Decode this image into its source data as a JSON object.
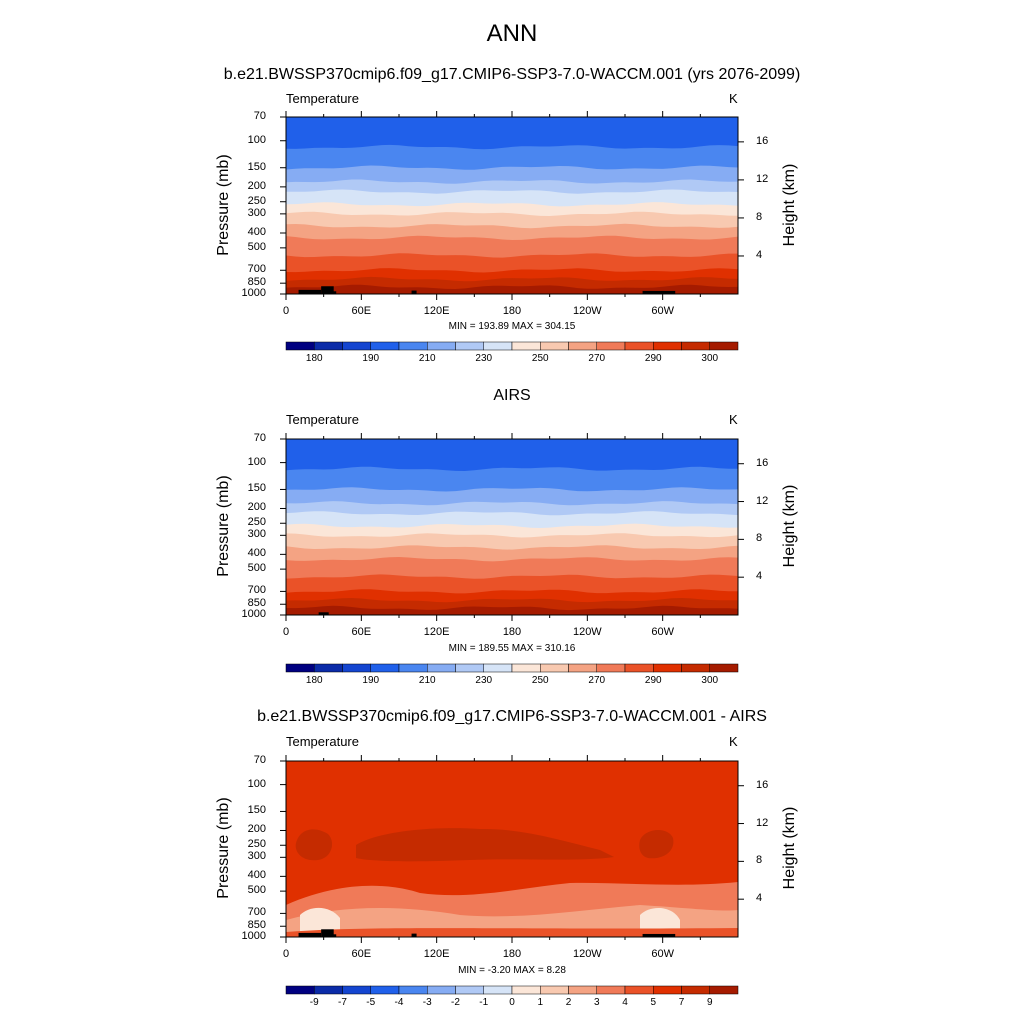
{
  "title": "ANN",
  "colors": {
    "temperature_scale": [
      "#000080",
      "#0b2ba8",
      "#1445d0",
      "#2060ea",
      "#4a86f0",
      "#86acf3",
      "#b0c9f5",
      "#d6e4f7",
      "#fbe6d8",
      "#f8c9b0",
      "#f4a383",
      "#f07a58",
      "#ea5228",
      "#e03000",
      "#c52b00",
      "#a51b00",
      "#7e0000"
    ],
    "mask": "#000000"
  },
  "chart_data": [
    {
      "type": "heatmap",
      "id": "model",
      "title": "b.e21.BWSSP370cmip6.f09_g17.CMIP6-SSP3-7.0-WACCM.001 (yrs 2076-2099)",
      "left_label": "Temperature",
      "right_label": "K",
      "ylabel": "Pressure (mb)",
      "ylabel_right": "Height (km)",
      "x_ticks": [
        "0",
        "60E",
        "120E",
        "180",
        "120W",
        "60W"
      ],
      "y_ticks": [
        "70",
        "100",
        "150",
        "200",
        "250",
        "300",
        "400",
        "500",
        "700",
        "850",
        "1000"
      ],
      "height_ticks": [
        "4",
        "8",
        "12",
        "16"
      ],
      "stats": "MIN = 193.89  MAX = 304.15",
      "colorbar_labels": [
        "180",
        "190",
        "210",
        "230",
        "250",
        "270",
        "290",
        "300"
      ],
      "ylim": [
        1000,
        70
      ],
      "xlim": [
        0,
        360
      ]
    },
    {
      "type": "heatmap",
      "id": "obs",
      "title": "AIRS",
      "left_label": "Temperature",
      "right_label": "K",
      "ylabel": "Pressure (mb)",
      "ylabel_right": "Height (km)",
      "x_ticks": [
        "0",
        "60E",
        "120E",
        "180",
        "120W",
        "60W"
      ],
      "y_ticks": [
        "70",
        "100",
        "150",
        "200",
        "250",
        "300",
        "400",
        "500",
        "700",
        "850",
        "1000"
      ],
      "height_ticks": [
        "4",
        "8",
        "12",
        "16"
      ],
      "stats": "MIN = 189.55  MAX = 310.16",
      "colorbar_labels": [
        "180",
        "190",
        "210",
        "230",
        "250",
        "270",
        "290",
        "300"
      ],
      "ylim": [
        1000,
        70
      ],
      "xlim": [
        0,
        360
      ]
    },
    {
      "type": "heatmap",
      "id": "diff",
      "title": "b.e21.BWSSP370cmip6.f09_g17.CMIP6-SSP3-7.0-WACCM.001 - AIRS",
      "left_label": "Temperature",
      "right_label": "K",
      "ylabel": "Pressure (mb)",
      "ylabel_right": "Height (km)",
      "x_ticks": [
        "0",
        "60E",
        "120E",
        "180",
        "120W",
        "60W"
      ],
      "y_ticks": [
        "70",
        "100",
        "150",
        "200",
        "250",
        "300",
        "400",
        "500",
        "700",
        "850",
        "1000"
      ],
      "height_ticks": [
        "4",
        "8",
        "12",
        "16"
      ],
      "stats": "MIN =  -3.20  MAX =   8.28",
      "colorbar_labels": [
        "-9",
        "-7",
        "-5",
        "-4",
        "-3",
        "-2",
        "-1",
        "0",
        "1",
        "2",
        "3",
        "4",
        "5",
        "7",
        "9"
      ],
      "ylim": [
        1000,
        70
      ],
      "xlim": [
        0,
        360
      ]
    }
  ]
}
